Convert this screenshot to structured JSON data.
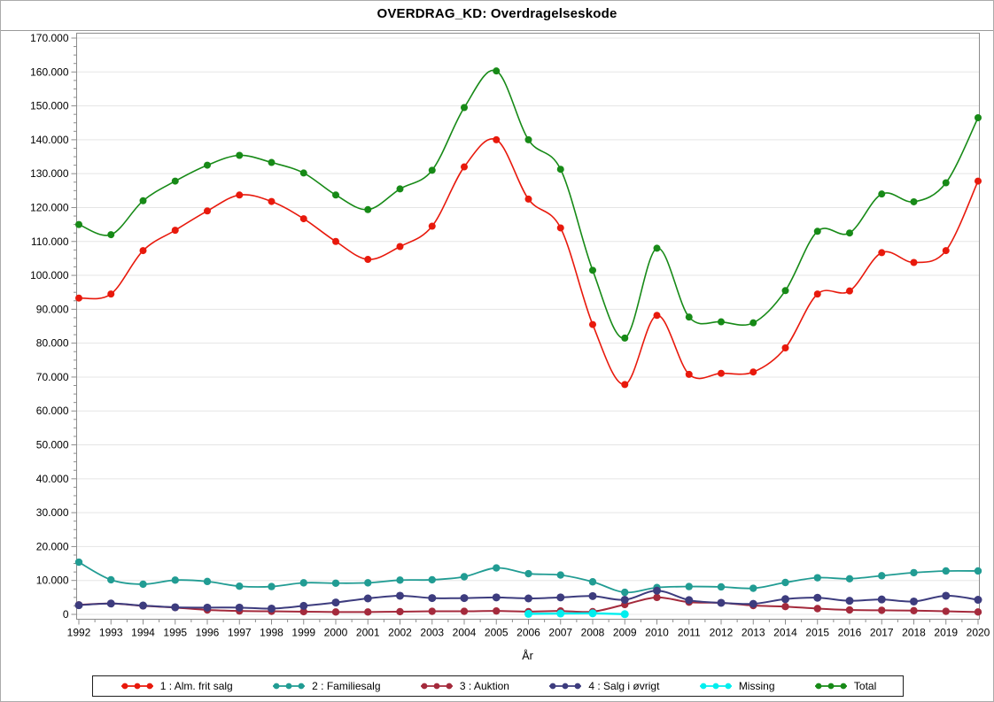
{
  "figure": {
    "title": "OVERDRAG_KD: Overdragelseskode",
    "background_color": "#FFFFFF",
    "frame_color": "#8C8C8C",
    "grid_color": "#E5E5E5",
    "text_color": "#000000",
    "legend_border_color": "#1F1F1F"
  },
  "chart_data": {
    "type": "line",
    "title": "OVERDRAG_KD: Overdragelseskode",
    "xlabel": "År",
    "ylabel": "",
    "grid": "horizontal",
    "legend_position": "bottom",
    "ylim": [
      0,
      170000
    ],
    "y_major_step": 10000,
    "y_minor_step": 2500,
    "y_tick_labels": [
      "0",
      "10.000",
      "20.000",
      "30.000",
      "40.000",
      "50.000",
      "60.000",
      "70.000",
      "80.000",
      "90.000",
      "100.000",
      "110.000",
      "120.000",
      "130.000",
      "140.000",
      "150.000",
      "160.000",
      "170.000"
    ],
    "x_categories": [
      "1992",
      "1993",
      "1994",
      "1995",
      "1996",
      "1997",
      "1998",
      "1999",
      "2000",
      "2001",
      "2002",
      "2003",
      "2004",
      "2005",
      "2006",
      "2007",
      "2008",
      "2009",
      "2010",
      "2011",
      "2012",
      "2013",
      "2014",
      "2015",
      "2016",
      "2017",
      "2018",
      "2019",
      "2020"
    ],
    "series": [
      {
        "name": "1 : Alm. frit salg",
        "color": "#E8190C",
        "line_width": 1.6,
        "marker_radius": 4,
        "values": [
          93300,
          94500,
          107300,
          113300,
          119000,
          123700,
          121800,
          116700,
          110000,
          104700,
          108500,
          114500,
          132000,
          140000,
          122500,
          114000,
          85500,
          67800,
          88200,
          70800,
          71100,
          71500,
          78600,
          94500,
          95400,
          106700,
          103800,
          107300,
          127800
        ]
      },
      {
        "name": "2 : Familiesalg",
        "color": "#219C93",
        "line_width": 1.8,
        "marker_radius": 4.2,
        "values": [
          15400,
          10200,
          8900,
          10100,
          9700,
          8300,
          8200,
          9300,
          9200,
          9300,
          10100,
          10200,
          11100,
          13700,
          12000,
          11600,
          9600,
          6500,
          7900,
          8200,
          8100,
          7700,
          9400,
          10800,
          10500,
          11400,
          12300,
          12800,
          12800
        ]
      },
      {
        "name": "3 : Auktion",
        "color": "#A42A3C",
        "line_width": 2,
        "marker_radius": 4.2,
        "values": [
          2800,
          3200,
          2500,
          2000,
          1300,
          1000,
          900,
          800,
          700,
          700,
          800,
          900,
          900,
          1000,
          800,
          1000,
          800,
          2900,
          5000,
          3600,
          3400,
          2600,
          2300,
          1700,
          1300,
          1200,
          1100,
          900,
          700
        ]
      },
      {
        "name": "4 : Salg i øvrigt",
        "color": "#3D3C7E",
        "line_width": 2,
        "marker_radius": 4.5,
        "values": [
          2700,
          3200,
          2600,
          2100,
          2000,
          2000,
          1700,
          2500,
          3500,
          4700,
          5500,
          4800,
          4800,
          5000,
          4700,
          5000,
          5400,
          4300,
          7000,
          4200,
          3400,
          3100,
          4500,
          4900,
          4000,
          4400,
          3800,
          5500,
          4300
        ]
      },
      {
        "name": "Missing",
        "color": "#00EEEE",
        "line_width": 2.4,
        "marker_radius": 4.5,
        "values": [
          null,
          null,
          null,
          null,
          null,
          null,
          null,
          null,
          null,
          null,
          null,
          null,
          null,
          null,
          150,
          250,
          300,
          50,
          null,
          null,
          null,
          null,
          null,
          null,
          null,
          null,
          null,
          null,
          null
        ]
      },
      {
        "name": "Total",
        "color": "#178A17",
        "line_width": 1.6,
        "marker_radius": 4,
        "values": [
          115000,
          112000,
          122000,
          127800,
          132500,
          135400,
          133300,
          130200,
          123700,
          119400,
          125500,
          131000,
          149500,
          160300,
          140000,
          131300,
          101500,
          81500,
          108000,
          87700,
          86300,
          86000,
          95500,
          113000,
          112500,
          124000,
          121700,
          127300,
          146500
        ]
      }
    ]
  }
}
